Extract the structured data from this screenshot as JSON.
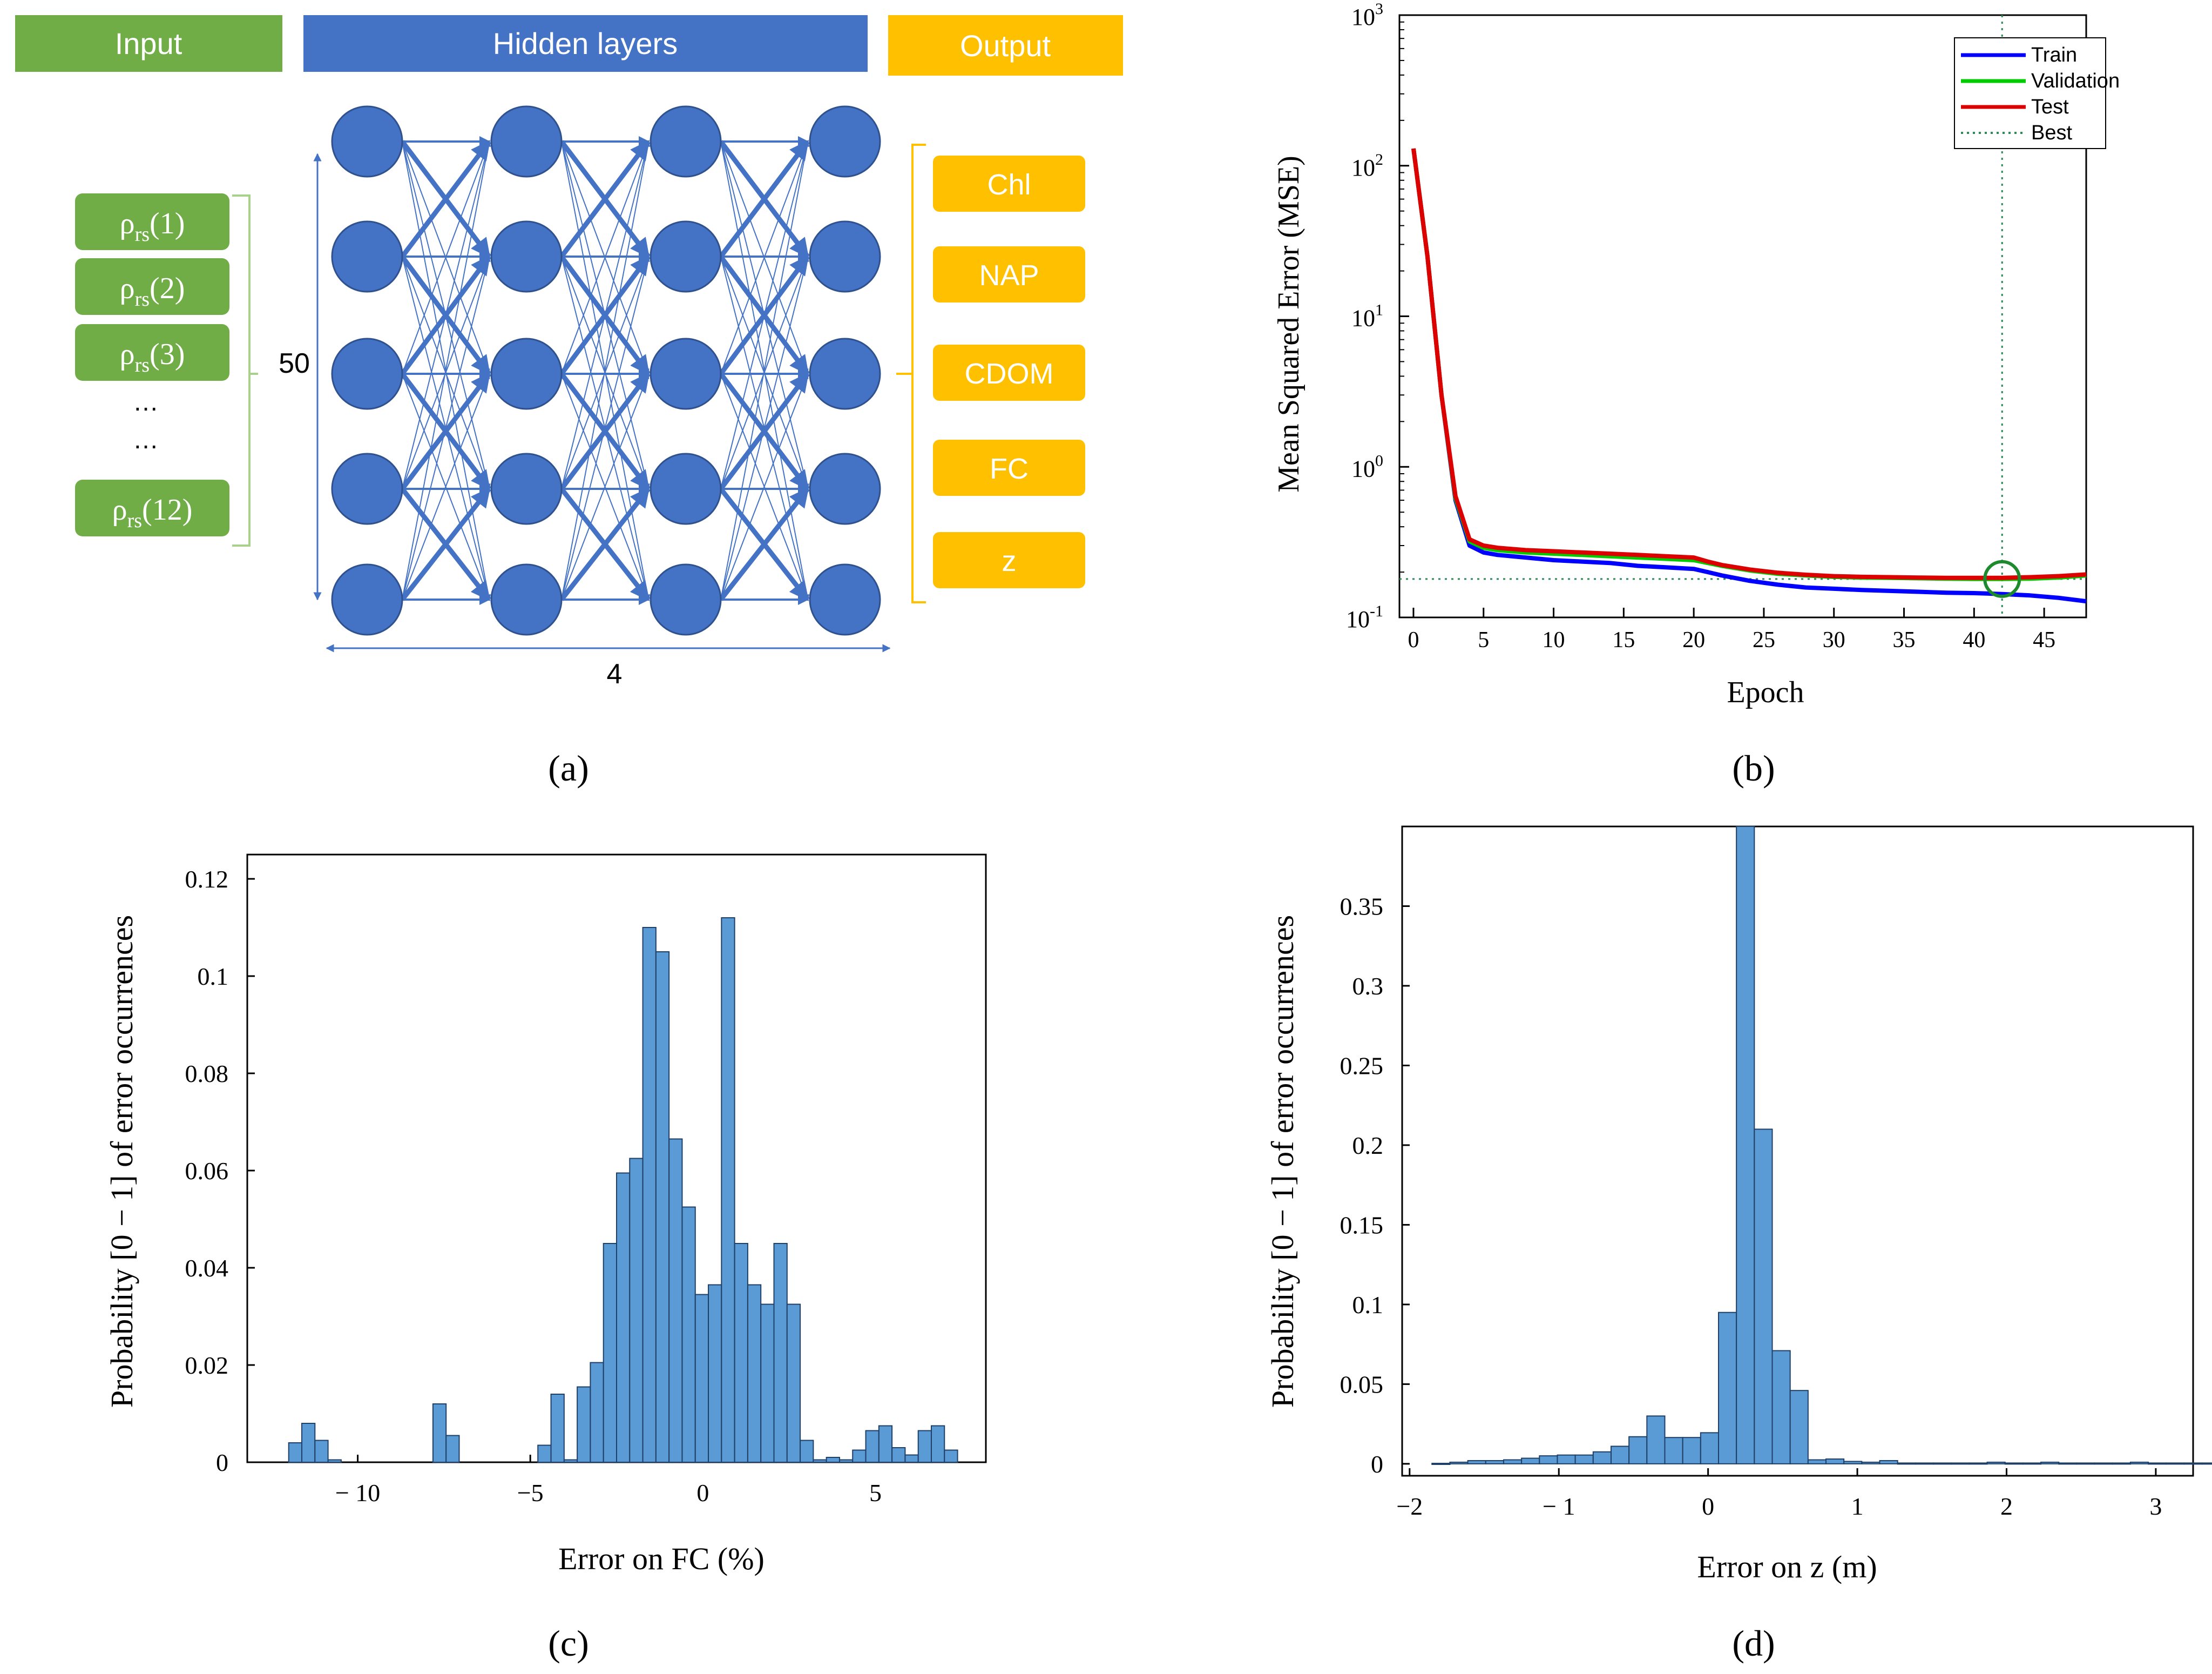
{
  "diagram": {
    "headers": {
      "input": "Input",
      "hidden": "Hidden layers",
      "output": "Output"
    },
    "inputs": [
      "ρrs(1)",
      "ρrs(2)",
      "ρrs(3)",
      "…",
      "…",
      "ρrs(12)"
    ],
    "input_items": [
      {
        "base": "ρ",
        "sub": "rs",
        "idx": "(1)"
      },
      {
        "base": "ρ",
        "sub": "rs",
        "idx": "(2)"
      },
      {
        "base": "ρ",
        "sub": "rs",
        "idx": "(3)"
      },
      {
        "base": "ρ",
        "sub": "rs",
        "idx": "(12)"
      }
    ],
    "ellipsis": "…",
    "neurons_label": "50",
    "layers_label": "4",
    "outputs": [
      "Chl",
      "NAP",
      "CDOM",
      "FC",
      "z"
    ],
    "colors": {
      "input": "#70AD47",
      "hidden": "#4472C4",
      "output": "#FFC000",
      "node": "#4472C4",
      "node_stroke": "#2F528F",
      "edge": "#4472C4"
    }
  },
  "panel_labels": [
    "(a)",
    "(b)",
    "(c)",
    "(d)"
  ],
  "chart_data": [
    {
      "id": "b",
      "type": "line",
      "xlabel": "Epoch",
      "ylabel": "Mean Squared Error (MSE)",
      "yscale": "log",
      "xlim": [
        -1,
        48
      ],
      "ylim": [
        0.1,
        1000
      ],
      "xticks": [
        0,
        5,
        10,
        15,
        20,
        25,
        30,
        35,
        40,
        45
      ],
      "yticks": [
        {
          "value": 1000,
          "base": "10",
          "exp": "3"
        },
        {
          "value": 100,
          "base": "10",
          "exp": "2"
        },
        {
          "value": 10,
          "base": "10",
          "exp": "1"
        },
        {
          "value": 1,
          "base": "10",
          "exp": "0"
        },
        {
          "value": 0.1,
          "base": "10",
          "exp": "-1"
        }
      ],
      "x": [
        0,
        1,
        2,
        3,
        4,
        5,
        6,
        8,
        10,
        12,
        14,
        16,
        18,
        20,
        21,
        22,
        24,
        26,
        28,
        30,
        32,
        34,
        36,
        38,
        40,
        42,
        44,
        46,
        48
      ],
      "series": [
        {
          "name": "Train",
          "color": "#0000ff",
          "values": [
            130,
            25,
            3,
            0.6,
            0.3,
            0.27,
            0.26,
            0.25,
            0.24,
            0.235,
            0.23,
            0.22,
            0.215,
            0.21,
            0.2,
            0.19,
            0.175,
            0.165,
            0.158,
            0.155,
            0.152,
            0.15,
            0.148,
            0.146,
            0.145,
            0.143,
            0.14,
            0.135,
            0.128
          ]
        },
        {
          "name": "Validation",
          "color": "#00cc00",
          "values": [
            130,
            25,
            3,
            0.62,
            0.32,
            0.29,
            0.28,
            0.27,
            0.265,
            0.26,
            0.255,
            0.25,
            0.245,
            0.24,
            0.23,
            0.22,
            0.205,
            0.195,
            0.19,
            0.186,
            0.184,
            0.183,
            0.182,
            0.181,
            0.18,
            0.18,
            0.181,
            0.184,
            0.19
          ]
        },
        {
          "name": "Test",
          "color": "#dd0000",
          "values": [
            130,
            25,
            3,
            0.64,
            0.33,
            0.3,
            0.29,
            0.28,
            0.275,
            0.27,
            0.265,
            0.26,
            0.255,
            0.25,
            0.235,
            0.223,
            0.208,
            0.198,
            0.192,
            0.188,
            0.186,
            0.185,
            0.184,
            0.183,
            0.183,
            0.183,
            0.185,
            0.188,
            0.193
          ]
        }
      ],
      "best": {
        "label": "Best",
        "epoch": 42,
        "value": 0.18
      },
      "legend": [
        "Train",
        "Validation",
        "Test",
        "Best"
      ],
      "legend_position": "top-right"
    },
    {
      "id": "c",
      "type": "bar",
      "subtype": "histogram",
      "xlabel": "Error on FC (%)",
      "ylabel": "Probability [0 − 1] of error occurrences",
      "xlim": [
        -13.2,
        8.2
      ],
      "ylim": [
        0,
        0.125
      ],
      "xticks": [
        {
          "value": -10,
          "label": "− 10"
        },
        {
          "value": -5,
          "label": "−5"
        },
        {
          "value": 0,
          "label": "0"
        },
        {
          "value": 5,
          "label": "5"
        }
      ],
      "yticks": [
        {
          "value": 0,
          "label": "0"
        },
        {
          "value": 0.02,
          "label": "0.02"
        },
        {
          "value": 0.04,
          "label": "0.04"
        },
        {
          "value": 0.06,
          "label": "0.06"
        },
        {
          "value": 0.08,
          "label": "0.08"
        },
        {
          "value": 0.1,
          "label": "0.1"
        },
        {
          "value": 0.12,
          "label": "0.12"
        }
      ],
      "bin_start": -12,
      "bin_width": 0.38,
      "values": [
        0.004,
        0.008,
        0.0045,
        0.0005,
        0,
        0,
        0,
        0,
        0,
        0,
        0,
        0.012,
        0.0055,
        0,
        0,
        0,
        0,
        0,
        0,
        0.0035,
        0.014,
        0.0005,
        0.0155,
        0.0205,
        0.045,
        0.0595,
        0.0625,
        0.11,
        0.105,
        0.0665,
        0.0525,
        0.0345,
        0.0365,
        0.112,
        0.045,
        0.0365,
        0.0325,
        0.045,
        0.0325,
        0.0045,
        0.0005,
        0.001,
        0.0005,
        0.0025,
        0.0065,
        0.0075,
        0.003,
        0.0015,
        0.0065,
        0.0075,
        0.0025
      ],
      "color": "#5B9BD5"
    },
    {
      "id": "d",
      "type": "bar",
      "subtype": "histogram",
      "xlabel": "Error on z (m)",
      "ylabel": "Probability [0 − 1] of error occurrences",
      "xlim": [
        -2.05,
        3.25
      ],
      "ylim": [
        -0.0075,
        0.4
      ],
      "xticks": [
        {
          "value": -2,
          "label": "−2"
        },
        {
          "value": -1,
          "label": "− 1"
        },
        {
          "value": 0,
          "label": "0"
        },
        {
          "value": 1,
          "label": "1"
        },
        {
          "value": 2,
          "label": "2"
        },
        {
          "value": 3,
          "label": "3"
        }
      ],
      "yticks": [
        {
          "value": 0,
          "label": "0"
        },
        {
          "value": 0.05,
          "label": "0.05"
        },
        {
          "value": 0.1,
          "label": "0.1"
        },
        {
          "value": 0.15,
          "label": "0.15"
        },
        {
          "value": 0.2,
          "label": "0.2"
        },
        {
          "value": 0.25,
          "label": "0.25"
        },
        {
          "value": 0.3,
          "label": "0.3"
        },
        {
          "value": 0.35,
          "label": "0.35"
        }
      ],
      "bin_start": -1.85,
      "bin_width": 0.12,
      "values": [
        0.0003,
        0.001,
        0.002,
        0.002,
        0.0025,
        0.0035,
        0.005,
        0.0055,
        0.0055,
        0.0075,
        0.011,
        0.017,
        0.03,
        0.0165,
        0.0165,
        0.0195,
        0.095,
        0.4,
        0.21,
        0.071,
        0.046,
        0.0025,
        0.003,
        0.0015,
        0.001,
        0.002,
        0.0005,
        0.0005,
        0.0005,
        0.0005,
        0.0005,
        0.001,
        0.0005,
        0.0005,
        0.001,
        0.0005,
        0.0005,
        0.0005,
        0.0005,
        0.001,
        0.0005,
        0.0005,
        0.0005,
        0.0005,
        0.0005,
        0.0005
      ],
      "color": "#5B9BD5"
    }
  ]
}
